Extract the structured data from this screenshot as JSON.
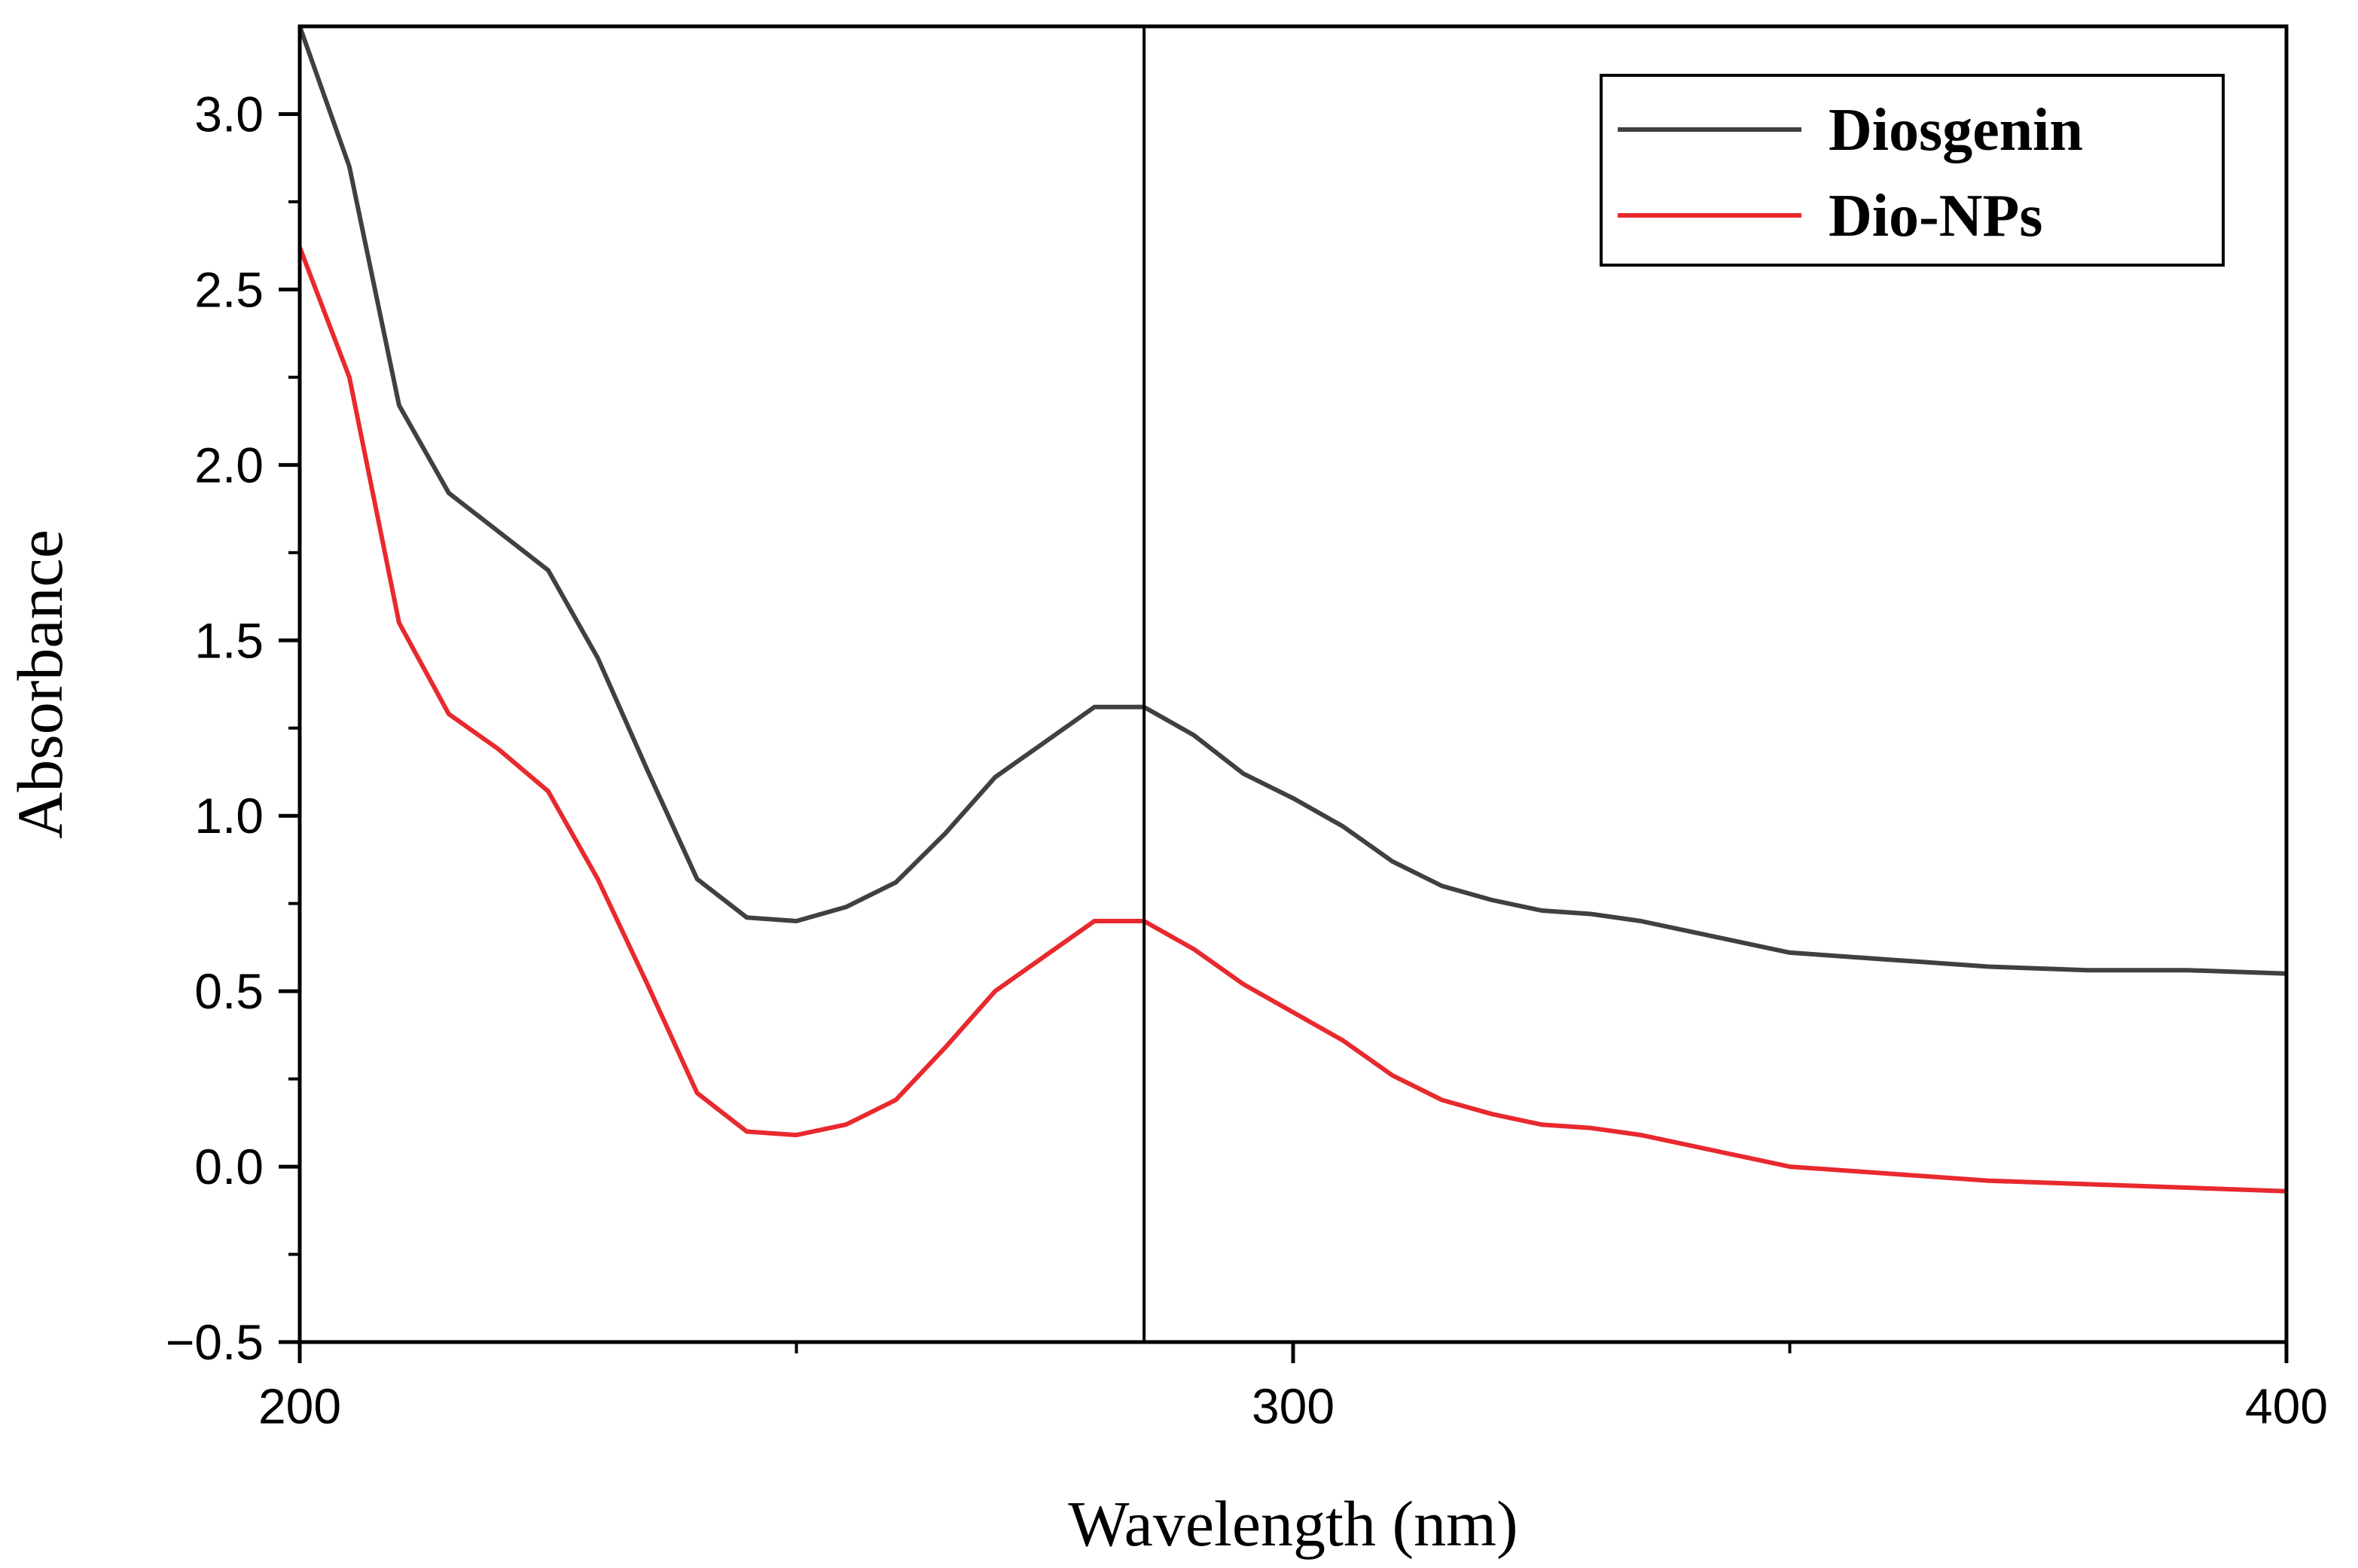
{
  "chart_data": {
    "type": "line",
    "title": "",
    "xlabel": "Wavelength (nm)",
    "ylabel": "Absorbance",
    "xlim": [
      200,
      400
    ],
    "ylim": [
      -0.5,
      3.25
    ],
    "xticks": [
      200,
      300,
      400
    ],
    "xtick_labels": [
      "200",
      "300",
      "400"
    ],
    "yticks": [
      -0.5,
      0.0,
      0.5,
      1.0,
      1.5,
      2.0,
      2.5,
      3.0
    ],
    "ytick_labels": [
      "−0.5",
      "0.0",
      "0.5",
      "1.0",
      "1.5",
      "2.0",
      "2.5",
      "3.0"
    ],
    "grid": false,
    "legend_position": "top-right",
    "vline_x": 285,
    "series": [
      {
        "name": "Diosgenin",
        "color": "#404040",
        "x": [
          200,
          205,
          210,
          215,
          220,
          225,
          230,
          235,
          240,
          245,
          250,
          255,
          260,
          265,
          270,
          275,
          280,
          285,
          290,
          295,
          300,
          305,
          310,
          315,
          320,
          325,
          330,
          335,
          340,
          345,
          350,
          360,
          370,
          380,
          390,
          400
        ],
        "y": [
          3.25,
          2.85,
          2.17,
          1.92,
          1.81,
          1.7,
          1.45,
          1.13,
          0.82,
          0.71,
          0.7,
          0.74,
          0.81,
          0.95,
          1.11,
          1.21,
          1.31,
          1.31,
          1.23,
          1.12,
          1.05,
          0.97,
          0.87,
          0.8,
          0.76,
          0.73,
          0.72,
          0.7,
          0.67,
          0.64,
          0.61,
          0.59,
          0.57,
          0.56,
          0.56,
          0.55
        ]
      },
      {
        "name": "Dio-NPs",
        "color": "#e8292e",
        "x": [
          200,
          205,
          210,
          215,
          220,
          225,
          230,
          235,
          240,
          245,
          250,
          255,
          260,
          265,
          270,
          275,
          280,
          285,
          290,
          295,
          300,
          305,
          310,
          315,
          320,
          325,
          330,
          335,
          340,
          345,
          350,
          360,
          370,
          380,
          390,
          400
        ],
        "y": [
          2.62,
          2.25,
          1.55,
          1.29,
          1.19,
          1.07,
          0.82,
          0.52,
          0.21,
          0.1,
          0.09,
          0.12,
          0.19,
          0.34,
          0.5,
          0.6,
          0.7,
          0.7,
          0.62,
          0.52,
          0.44,
          0.36,
          0.26,
          0.19,
          0.15,
          0.12,
          0.11,
          0.09,
          0.06,
          0.03,
          0.0,
          -0.02,
          -0.04,
          -0.05,
          -0.06,
          -0.07
        ]
      }
    ]
  }
}
